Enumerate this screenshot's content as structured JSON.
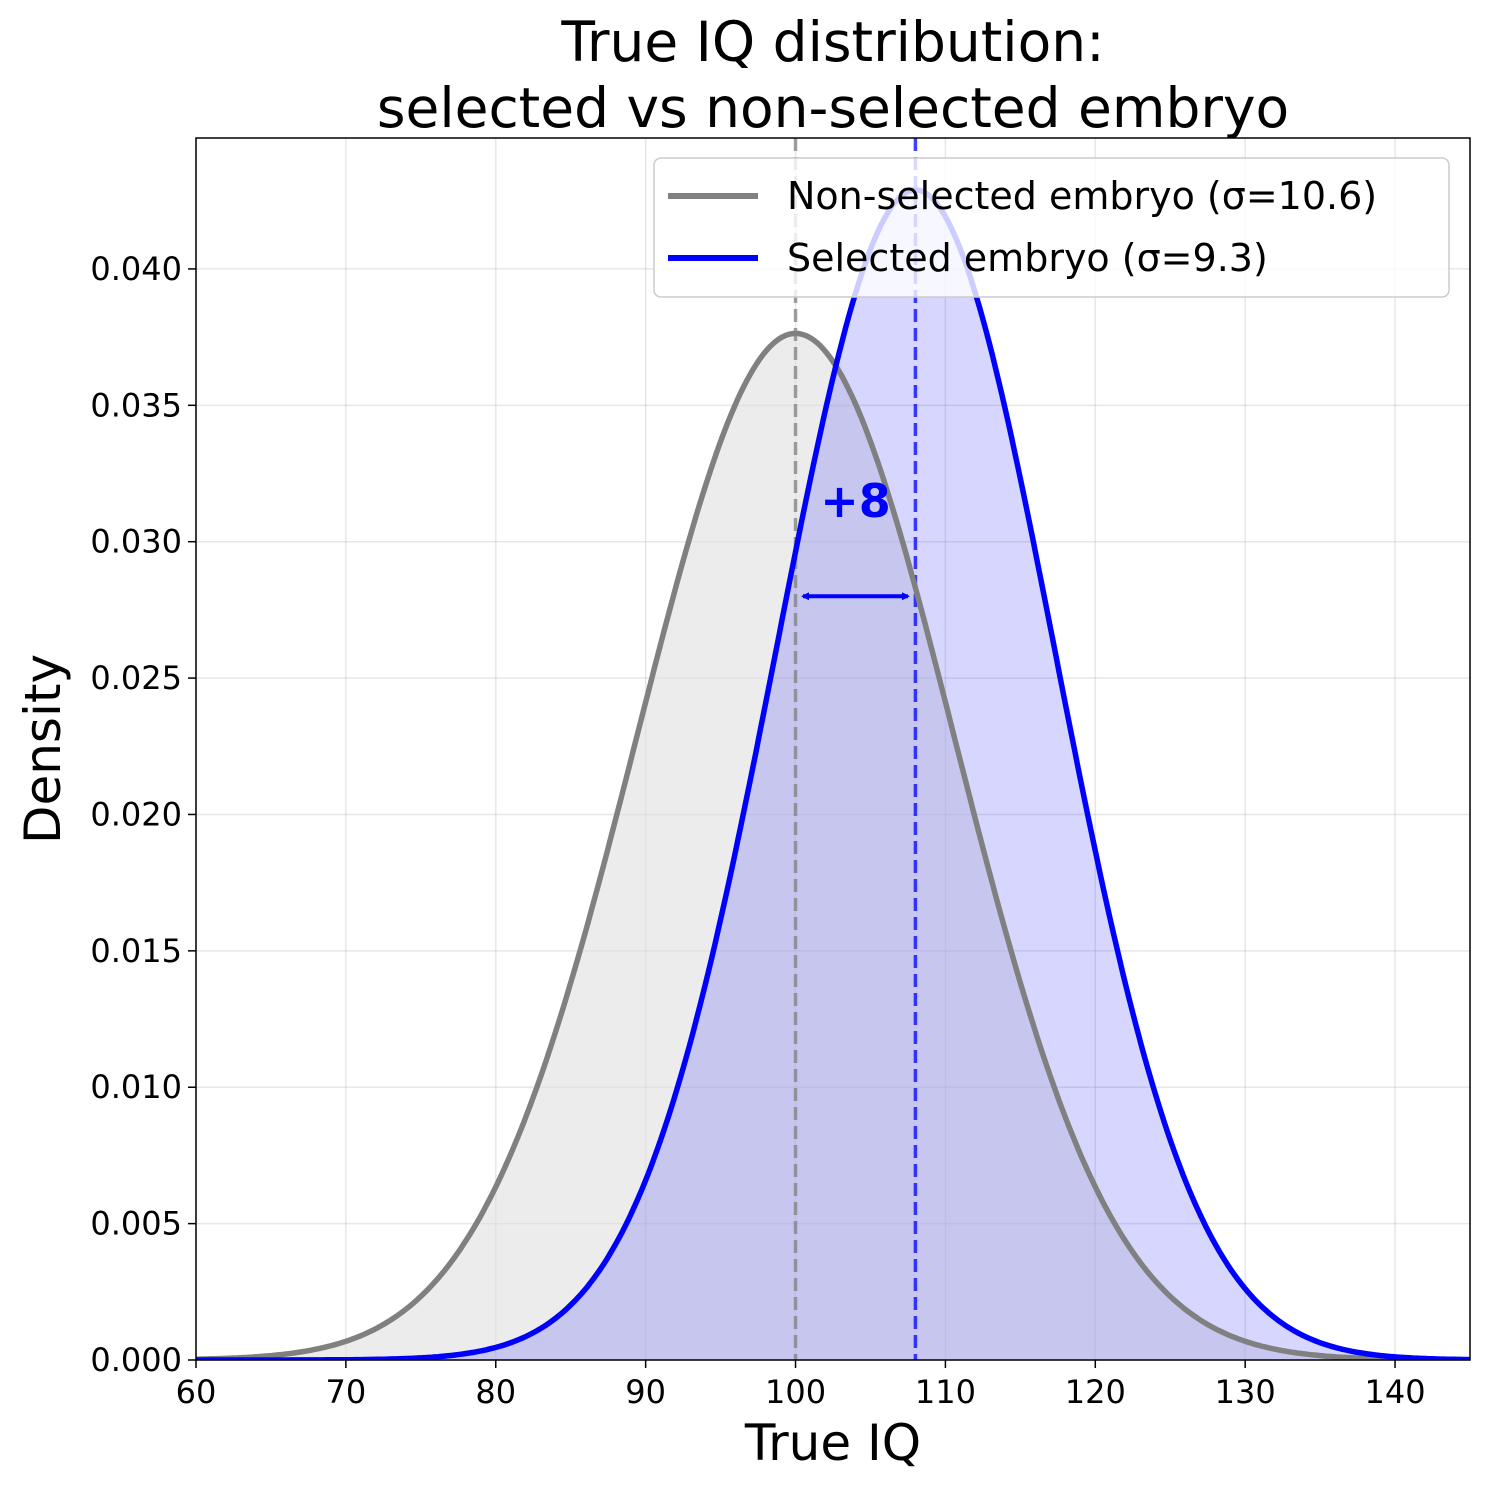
{
  "chart_data": {
    "type": "line",
    "title_lines": [
      "True IQ distribution:",
      "selected vs non-selected embryo"
    ],
    "xlabel": "True IQ",
    "ylabel": "Density",
    "xlim": [
      60,
      145
    ],
    "ylim": [
      0,
      0.0448
    ],
    "xticks": [
      60,
      70,
      80,
      90,
      100,
      110,
      120,
      130,
      140
    ],
    "yticks": [
      0.0,
      0.005,
      0.01,
      0.015,
      0.02,
      0.025,
      0.03,
      0.035,
      0.04
    ],
    "ytick_labels": [
      "0.000",
      "0.005",
      "0.010",
      "0.015",
      "0.020",
      "0.025",
      "0.030",
      "0.035",
      "0.040"
    ],
    "grid": true,
    "legend_position": "top-right",
    "series": [
      {
        "name": "Non-selected embryo (σ=10.6)",
        "distribution": "normal",
        "mean": 100,
        "sd": 10.6,
        "color": "#808080",
        "fill": "#e0e0e0",
        "fill_opacity": 0.6
      },
      {
        "name": "Selected embryo (σ=9.3)",
        "distribution": "normal",
        "mean": 108,
        "sd": 9.3,
        "color": "#0000ff",
        "fill": "#0000ff",
        "fill_opacity": 0.16
      }
    ],
    "mean_lines": [
      {
        "x": 100,
        "color": "#808080"
      },
      {
        "x": 108,
        "color": "#0000ff"
      }
    ],
    "annotation": {
      "text": "+8",
      "x": 104,
      "y": 0.0315,
      "arrow_from": 100.5,
      "arrow_to": 107.5,
      "arrow_y": 0.028,
      "color": "#0000ff"
    }
  }
}
